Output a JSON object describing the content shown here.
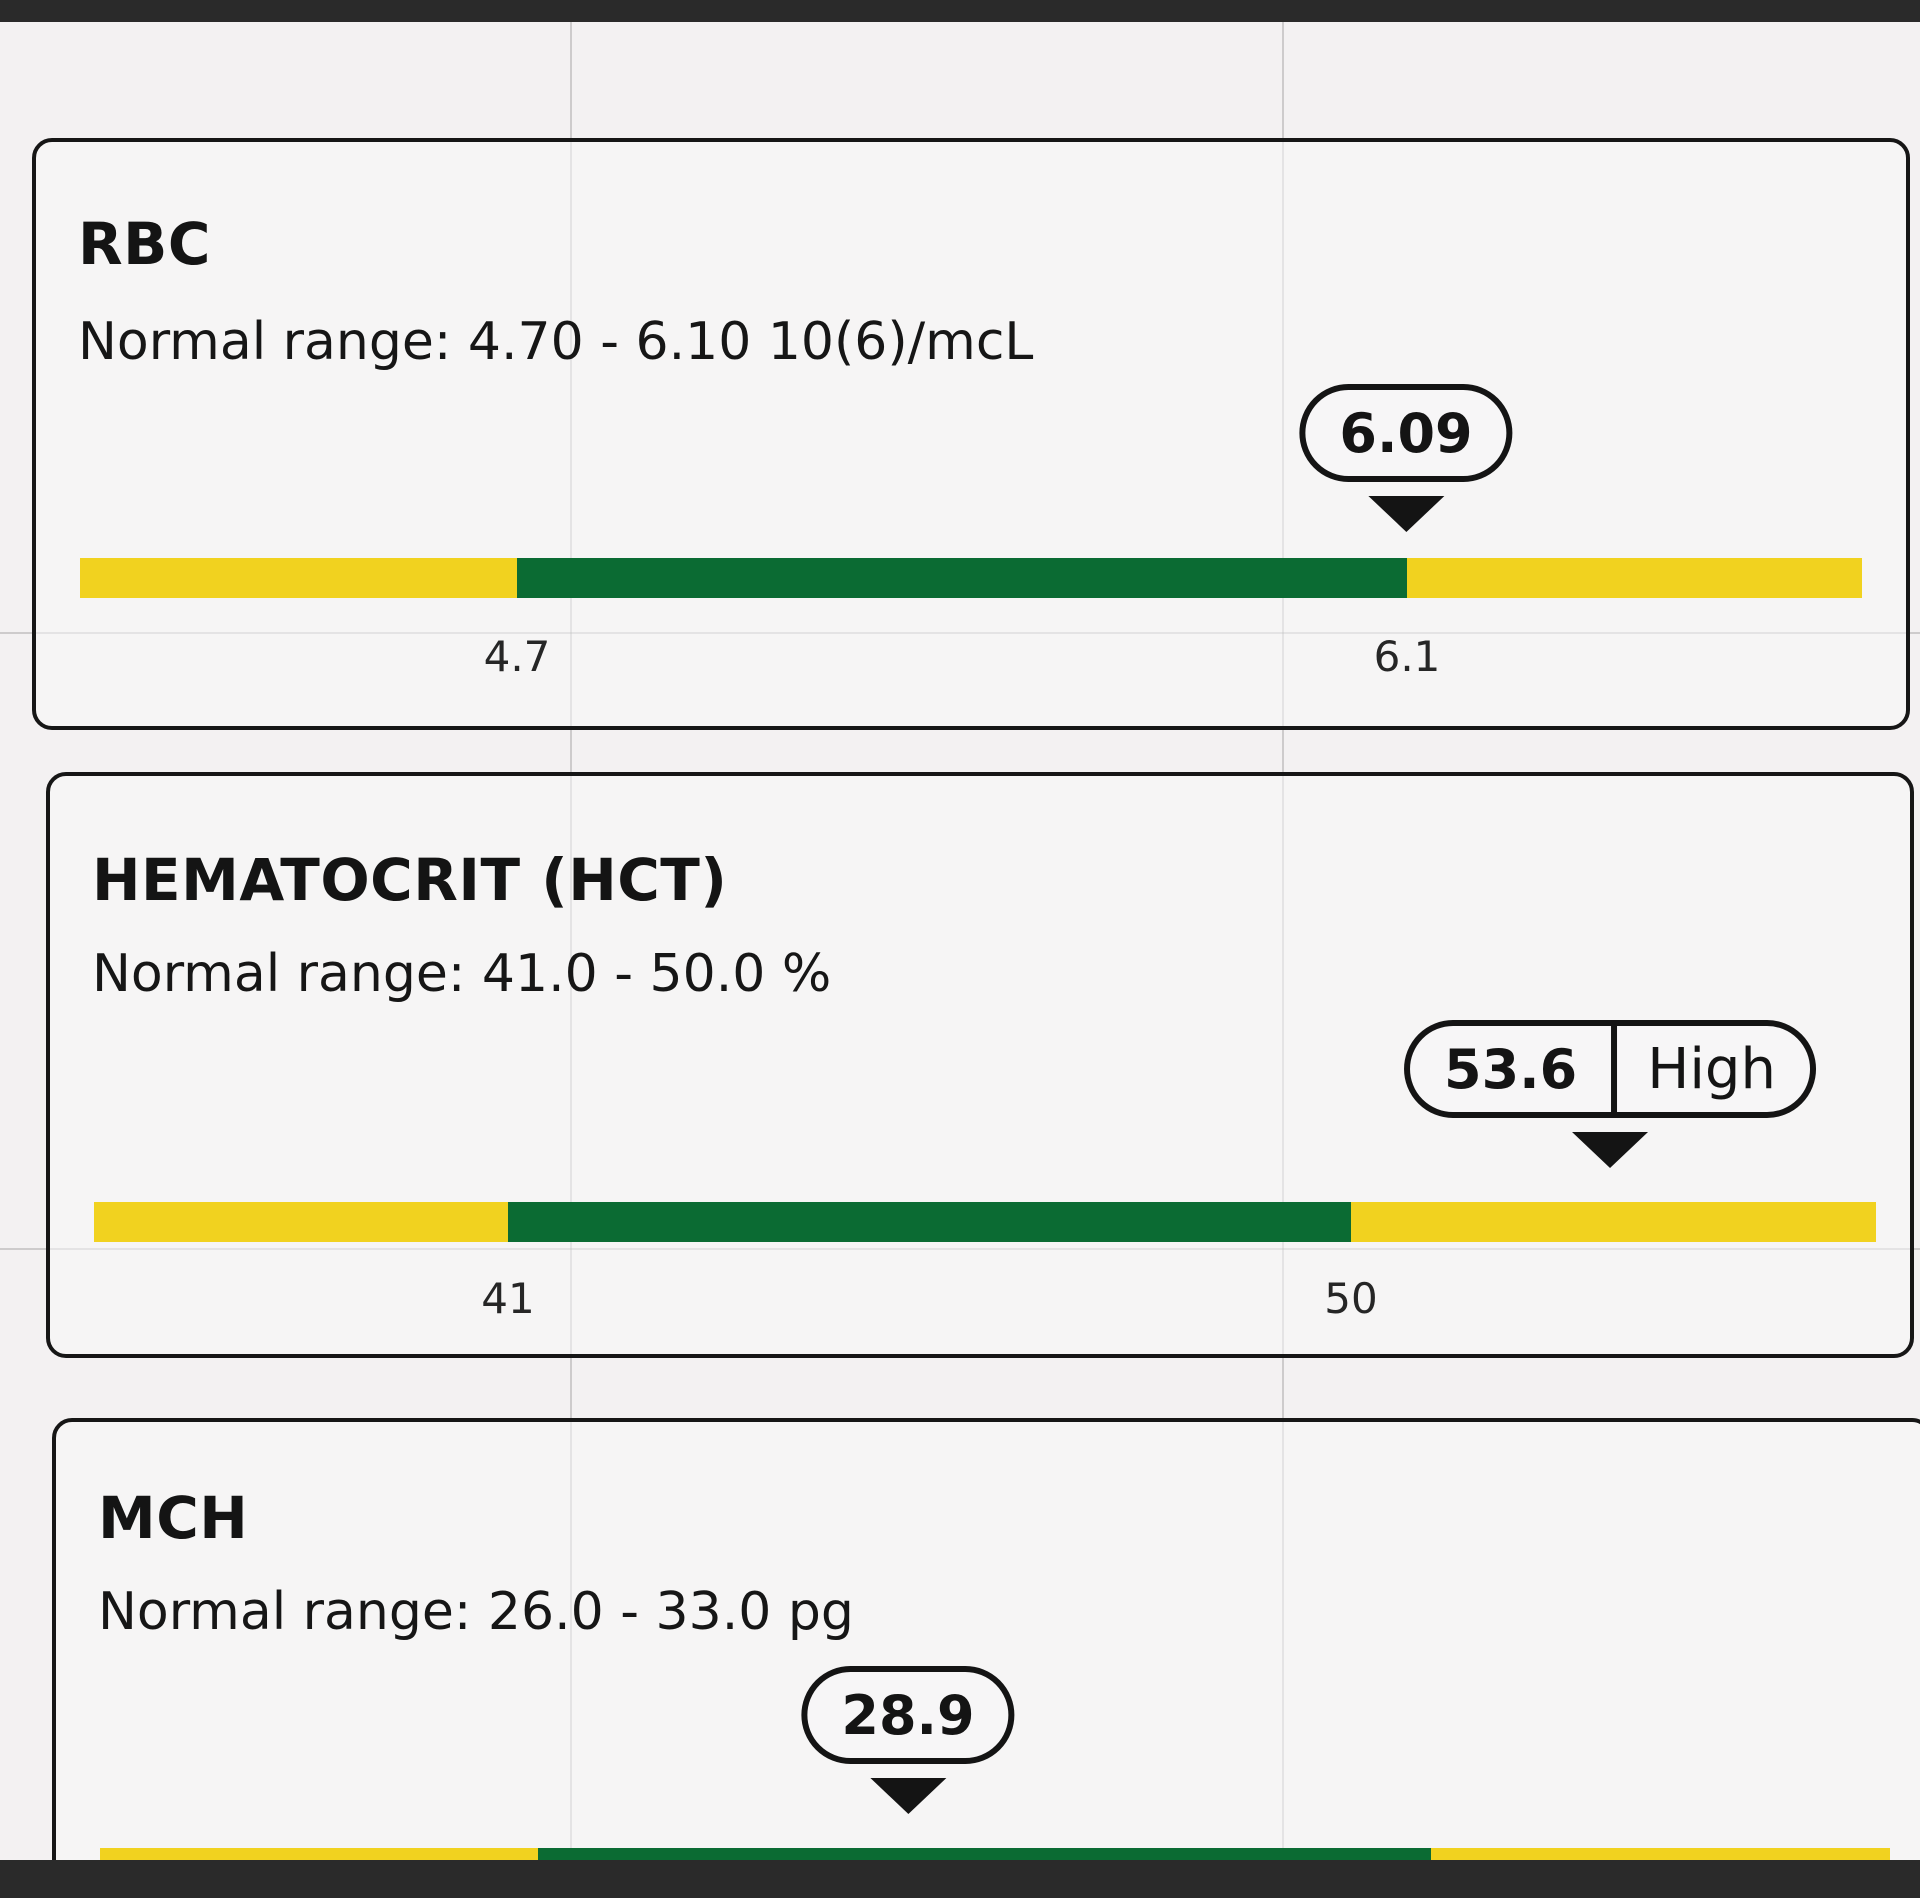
{
  "colors": {
    "in_range": "#0b6b33",
    "out_of_range": "#f1d21f",
    "border": "#161616",
    "background": "#f3f1f2"
  },
  "tests": [
    {
      "name": "RBC",
      "normal_range_text": "Normal range: 4.70 - 6.10 10(6)/mcL",
      "low": 4.7,
      "high": 6.1,
      "low_label": "4.7",
      "high_label": "6.1",
      "value": 6.09,
      "value_label": "6.09",
      "flag": ""
    },
    {
      "name": "HEMATOCRIT (HCT)",
      "normal_range_text": "Normal range: 41.0 - 50.0 %",
      "low": 41,
      "high": 50,
      "low_label": "41",
      "high_label": "50",
      "value": 53.6,
      "value_label": "53.6",
      "flag": "High"
    },
    {
      "name": "MCH",
      "normal_range_text": "Normal range: 26.0 - 33.0 pg",
      "low": 26.0,
      "high": 33.0,
      "low_label": "",
      "high_label": "",
      "value": 28.9,
      "value_label": "28.9",
      "flag": ""
    }
  ]
}
